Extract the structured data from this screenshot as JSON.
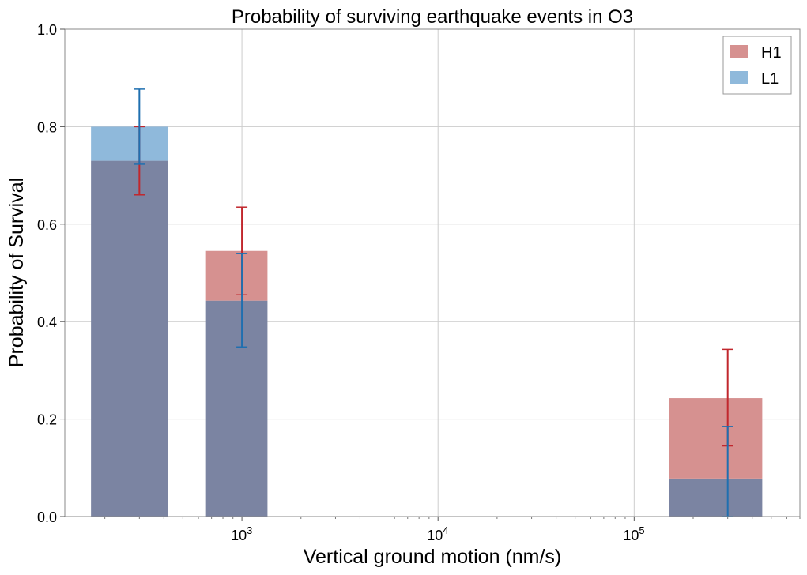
{
  "chart_data": {
    "type": "bar",
    "title": "Probability of surviving earthquake events in O3",
    "xlabel": "Vertical ground motion (nm/s)",
    "ylabel": "Probability of Survival",
    "x_scale": "log",
    "xlim": [
      125,
      700000
    ],
    "ylim": [
      0,
      1.0
    ],
    "grid": true,
    "legend_position": "top-right",
    "y_ticks": [
      "0.0",
      "0.2",
      "0.4",
      "0.6",
      "0.8",
      "1.0"
    ],
    "x_major_ticks": [
      {
        "value": 1000,
        "base": "10",
        "exp": "3"
      },
      {
        "value": 10000,
        "base": "10",
        "exp": "4"
      },
      {
        "value": 100000,
        "base": "10",
        "exp": "5"
      }
    ],
    "bins": [
      {
        "x_low": 170,
        "x_high": 420
      },
      {
        "x_low": 650,
        "x_high": 1350
      },
      {
        "x_low": 150000,
        "x_high": 450000
      }
    ],
    "series": [
      {
        "name": "H1",
        "color": "#d69190",
        "error_color": "#c1272d",
        "values": [
          0.73,
          0.545,
          0.243
        ],
        "errors": [
          {
            "x": 300,
            "low": 0.66,
            "high": 0.8
          },
          {
            "x": 1000,
            "low": 0.455,
            "high": 0.635
          },
          {
            "x": 300000,
            "low": 0.145,
            "high": 0.343
          }
        ]
      },
      {
        "name": "L1",
        "color": "#8fb9db",
        "error_color": "#1f6fb0",
        "values": [
          0.8,
          0.443,
          0.078
        ],
        "errors": [
          {
            "x": 300,
            "low": 0.723,
            "high": 0.877
          },
          {
            "x": 1000,
            "low": 0.348,
            "high": 0.54
          },
          {
            "x": 300000,
            "low": 0.0,
            "high": 0.185
          }
        ]
      }
    ],
    "overlap_color": "#7b84a2"
  }
}
